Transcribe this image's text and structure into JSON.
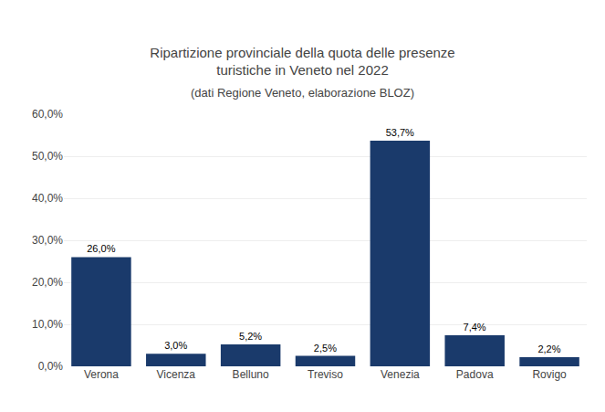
{
  "chart_data": {
    "type": "bar",
    "title": "Ripartizione provinciale della quota delle presenze\nturistiche in Veneto nel 2022",
    "subtitle": "(dati Regione Veneto, elaborazione BLOZ)",
    "categories": [
      "Verona",
      "Vicenza",
      "Belluno",
      "Treviso",
      "Venezia",
      "Padova",
      "Rovigo"
    ],
    "values": [
      26.0,
      3.0,
      5.2,
      2.5,
      53.7,
      7.4,
      2.2
    ],
    "value_labels": [
      "26,0%",
      "3,0%",
      "5,2%",
      "2,5%",
      "53,7%",
      "7,4%",
      "2,2%"
    ],
    "data_labels": true,
    "color": "#1A3A6B",
    "ylim": [
      0,
      60
    ],
    "yticks": [
      {
        "value": 0,
        "label": "0,0%"
      },
      {
        "value": 10,
        "label": "10,0%"
      },
      {
        "value": 20,
        "label": "20,0%"
      },
      {
        "value": 30,
        "label": "30,0%"
      },
      {
        "value": 40,
        "label": "40,0%"
      },
      {
        "value": 50,
        "label": "50,0%"
      },
      {
        "value": 60,
        "label": "60,0%"
      }
    ],
    "grid": true
  }
}
